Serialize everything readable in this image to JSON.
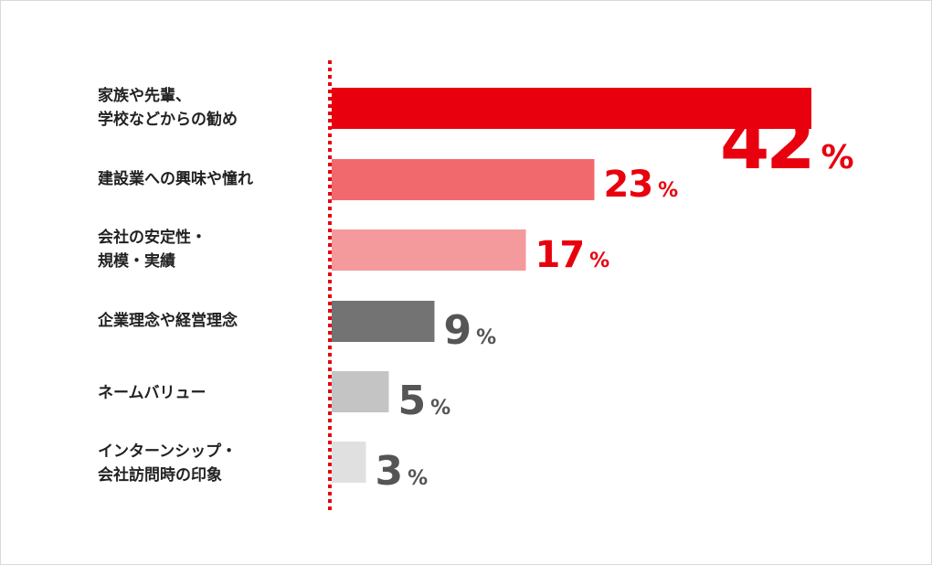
{
  "chart_data": {
    "type": "bar",
    "orientation": "horizontal",
    "categories": [
      "家族や先輩、\n学校などからの勧め",
      "建設業への興味や憧れ",
      "会社の安定性・\n規模・実績",
      "企業理念や経営理念",
      "ネームバリュー",
      "インターンシップ・\n会社訪問時の印象"
    ],
    "values": [
      42,
      23,
      17,
      9,
      5,
      3
    ],
    "unit": "%",
    "bar_colors": [
      "#e8000e",
      "#f2696d",
      "#f59a9c",
      "#737373",
      "#c4c4c4",
      "#e0e0e0"
    ],
    "label_colors": [
      "#e8000e",
      "#e8000e",
      "#e8000e",
      "#555555",
      "#555555",
      "#555555"
    ],
    "baseline_style": "red-dotted",
    "baseline_color": "#e8000e",
    "grid": false,
    "legend": "none"
  }
}
